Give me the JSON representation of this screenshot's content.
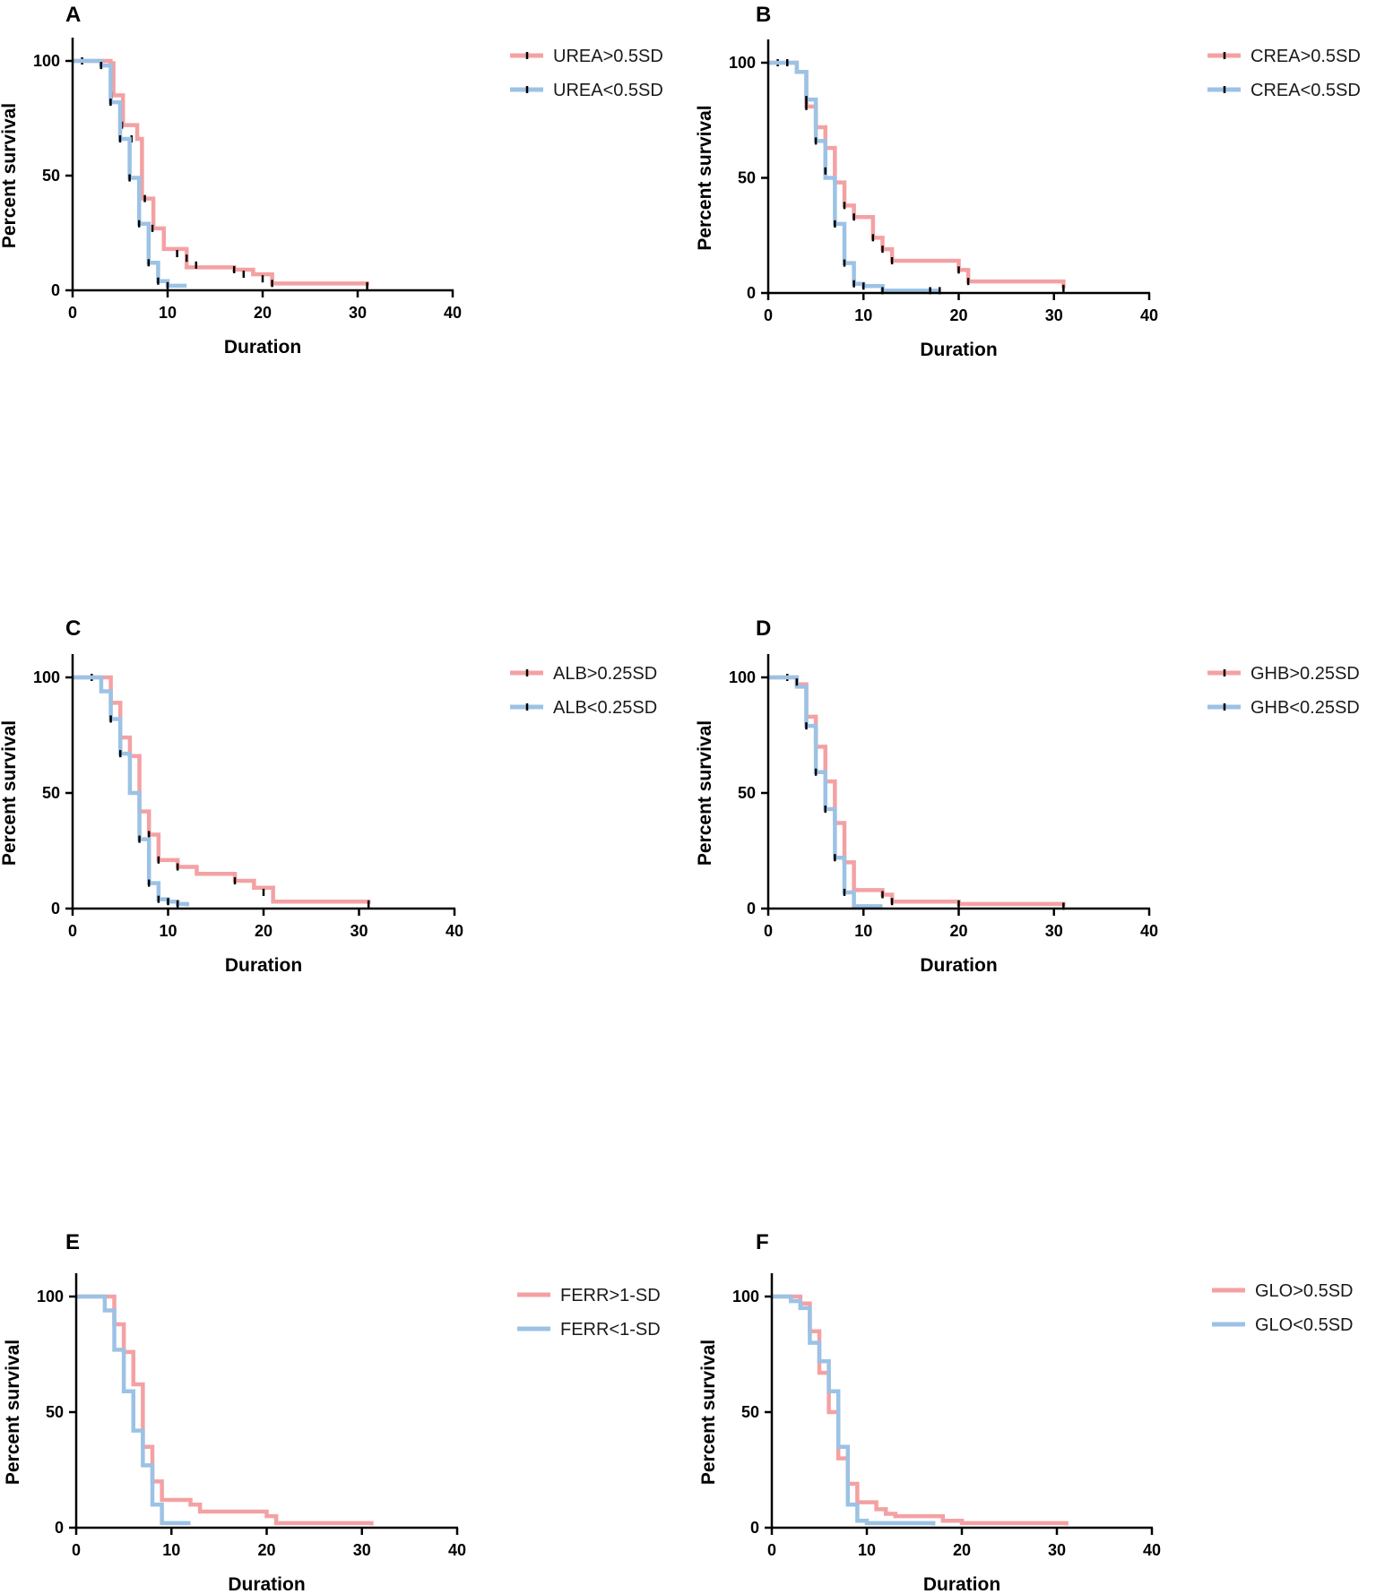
{
  "colors": {
    "high": "#f4a1a3",
    "low": "#9cc2e5",
    "censor": "#000000"
  },
  "chart_data": [
    {
      "type": "line",
      "panel": "A",
      "xlabel": "Duration",
      "ylabel": "Percent survival",
      "xlim": [
        0,
        40
      ],
      "ylim": [
        0,
        100
      ],
      "xticks": [
        0,
        10,
        20,
        30,
        40
      ],
      "yticks": [
        0,
        50,
        100
      ],
      "series": [
        {
          "name": "UREA>0.5SD",
          "color": "#f4a1a3",
          "steps": [
            [
              0,
              100
            ],
            [
              4,
              99
            ],
            [
              4.3,
              85
            ],
            [
              5.3,
              72
            ],
            [
              6.8,
              66
            ],
            [
              7.3,
              40
            ],
            [
              8.5,
              27
            ],
            [
              9.6,
              18
            ],
            [
              12,
              10
            ],
            [
              17,
              9
            ],
            [
              19,
              7
            ],
            [
              21,
              3
            ],
            [
              31,
              2
            ]
          ],
          "censor": [
            [
              1,
              100
            ],
            [
              4.1,
              85
            ],
            [
              5.2,
              72
            ],
            [
              6.2,
              66
            ],
            [
              7.6,
              40
            ],
            [
              8.4,
              27
            ],
            [
              11,
              16
            ],
            [
              12,
              14
            ],
            [
              13,
              11
            ],
            [
              17,
              9
            ],
            [
              18,
              7
            ],
            [
              20,
              5
            ],
            [
              21,
              3
            ],
            [
              31,
              2
            ]
          ]
        },
        {
          "name": "UREA<0.5SD",
          "color": "#9cc2e5",
          "steps": [
            [
              0,
              100
            ],
            [
              3,
              98
            ],
            [
              4,
              82
            ],
            [
              5,
              66
            ],
            [
              6,
              49
            ],
            [
              7,
              29
            ],
            [
              8,
              12
            ],
            [
              9,
              4
            ],
            [
              10,
              2
            ],
            [
              12,
              2
            ]
          ],
          "censor": [
            [
              3,
              98
            ],
            [
              4,
              82
            ],
            [
              5,
              66
            ],
            [
              6,
              49
            ],
            [
              7,
              29
            ],
            [
              8,
              12
            ],
            [
              9,
              4
            ],
            [
              10,
              2
            ]
          ]
        }
      ]
    },
    {
      "type": "line",
      "panel": "B",
      "xlabel": "Duration",
      "ylabel": "Percent survival",
      "xlim": [
        0,
        40
      ],
      "ylim": [
        0,
        100
      ],
      "xticks": [
        0,
        10,
        20,
        30,
        40
      ],
      "yticks": [
        0,
        50,
        100
      ],
      "series": [
        {
          "name": "CREA>0.5SD",
          "color": "#f4a1a3",
          "steps": [
            [
              0,
              100
            ],
            [
              3,
              96
            ],
            [
              4,
              81
            ],
            [
              5,
              72
            ],
            [
              6,
              63
            ],
            [
              7,
              48
            ],
            [
              8,
              38
            ],
            [
              9,
              33
            ],
            [
              11,
              24
            ],
            [
              12,
              19
            ],
            [
              13,
              14
            ],
            [
              20,
              10
            ],
            [
              21,
              5
            ],
            [
              31,
              2
            ]
          ],
          "censor": [
            [
              1,
              100
            ],
            [
              4,
              81
            ],
            [
              6,
              63
            ],
            [
              7,
              48
            ],
            [
              8,
              38
            ],
            [
              9,
              33
            ],
            [
              11,
              24
            ],
            [
              12,
              19
            ],
            [
              13,
              14
            ],
            [
              20,
              10
            ],
            [
              21,
              5
            ],
            [
              31,
              2
            ]
          ]
        },
        {
          "name": "CREA<0.5SD",
          "color": "#9cc2e5",
          "steps": [
            [
              0,
              100
            ],
            [
              3,
              96
            ],
            [
              4,
              84
            ],
            [
              5,
              66
            ],
            [
              6,
              50
            ],
            [
              7,
              30
            ],
            [
              8,
              13
            ],
            [
              9,
              4
            ],
            [
              10,
              3
            ],
            [
              12,
              1
            ],
            [
              18,
              1
            ]
          ],
          "censor": [
            [
              2,
              100
            ],
            [
              4,
              84
            ],
            [
              5,
              66
            ],
            [
              6,
              53
            ],
            [
              7,
              30
            ],
            [
              8,
              13
            ],
            [
              9,
              4
            ],
            [
              10,
              3
            ],
            [
              12,
              1
            ],
            [
              17,
              1
            ],
            [
              18,
              1
            ]
          ]
        }
      ]
    },
    {
      "type": "line",
      "panel": "C",
      "xlabel": "Duration",
      "ylabel": "Percent survival",
      "xlim": [
        0,
        40
      ],
      "ylim": [
        0,
        100
      ],
      "xticks": [
        0,
        10,
        20,
        30,
        40
      ],
      "yticks": [
        0,
        50,
        100
      ],
      "series": [
        {
          "name": "ALB>0.25SD",
          "color": "#f4a1a3",
          "steps": [
            [
              0,
              100
            ],
            [
              4,
              89
            ],
            [
              5,
              74
            ],
            [
              6,
              66
            ],
            [
              7,
              42
            ],
            [
              8,
              32
            ],
            [
              9,
              21
            ],
            [
              11,
              18
            ],
            [
              13,
              15
            ],
            [
              17,
              12
            ],
            [
              19,
              9
            ],
            [
              21,
              3
            ],
            [
              31,
              2
            ]
          ],
          "censor": [
            [
              2,
              100
            ],
            [
              5,
              74
            ],
            [
              6,
              66
            ],
            [
              7,
              42
            ],
            [
              8,
              32
            ],
            [
              9,
              21
            ],
            [
              11,
              18
            ],
            [
              17,
              12
            ],
            [
              20,
              7
            ],
            [
              31,
              2
            ]
          ]
        },
        {
          "name": "ALB<0.25SD",
          "color": "#9cc2e5",
          "steps": [
            [
              0,
              100
            ],
            [
              3,
              94
            ],
            [
              4,
              82
            ],
            [
              5,
              67
            ],
            [
              6,
              50
            ],
            [
              7,
              30
            ],
            [
              8,
              11
            ],
            [
              9,
              4
            ],
            [
              10,
              3
            ],
            [
              11,
              2
            ],
            [
              12,
              1
            ]
          ],
          "censor": [
            [
              4,
              82
            ],
            [
              5,
              67
            ],
            [
              7,
              30
            ],
            [
              8,
              11
            ],
            [
              9,
              4
            ],
            [
              10,
              3
            ],
            [
              11,
              2
            ]
          ]
        }
      ]
    },
    {
      "type": "line",
      "panel": "D",
      "xlabel": "Duration",
      "ylabel": "Percent survival",
      "xlim": [
        0,
        40
      ],
      "ylim": [
        0,
        100
      ],
      "xticks": [
        0,
        10,
        20,
        30,
        40
      ],
      "yticks": [
        0,
        50,
        100
      ],
      "series": [
        {
          "name": "GHB>0.25SD",
          "color": "#f4a1a3",
          "steps": [
            [
              0,
              100
            ],
            [
              3,
              97
            ],
            [
              4,
              83
            ],
            [
              5,
              70
            ],
            [
              6,
              55
            ],
            [
              7,
              37
            ],
            [
              8,
              20
            ],
            [
              9,
              8
            ],
            [
              12,
              6
            ],
            [
              13,
              3
            ],
            [
              20,
              2
            ],
            [
              31,
              1
            ]
          ],
          "censor": [
            [
              2,
              100
            ],
            [
              4,
              83
            ],
            [
              5,
              70
            ],
            [
              6,
              55
            ],
            [
              7,
              37
            ],
            [
              8,
              20
            ],
            [
              12,
              6
            ],
            [
              13,
              3
            ],
            [
              20,
              2
            ],
            [
              31,
              1
            ]
          ]
        },
        {
          "name": "GHB<0.25SD",
          "color": "#9cc2e5",
          "steps": [
            [
              0,
              100
            ],
            [
              3,
              96
            ],
            [
              4,
              79
            ],
            [
              5,
              59
            ],
            [
              6,
              43
            ],
            [
              7,
              22
            ],
            [
              8,
              7
            ],
            [
              9,
              1
            ],
            [
              12,
              1
            ]
          ],
          "censor": [
            [
              3,
              98
            ],
            [
              4,
              79
            ],
            [
              5,
              59
            ],
            [
              6,
              43
            ],
            [
              7,
              22
            ],
            [
              8,
              7
            ]
          ]
        }
      ]
    },
    {
      "type": "line",
      "panel": "E",
      "xlabel": "Duration",
      "ylabel": "Percent survival",
      "xlim": [
        0,
        40
      ],
      "ylim": [
        0,
        100
      ],
      "xticks": [
        0,
        10,
        20,
        30,
        40
      ],
      "yticks": [
        0,
        50,
        100
      ],
      "series": [
        {
          "name": "FERR>1-SD",
          "color": "#f4a1a3",
          "steps": [
            [
              0,
              100
            ],
            [
              4,
              88
            ],
            [
              5,
              76
            ],
            [
              6,
              62
            ],
            [
              7,
              35
            ],
            [
              8,
              20
            ],
            [
              9,
              12
            ],
            [
              12,
              10
            ],
            [
              13,
              7
            ],
            [
              20,
              5
            ],
            [
              21,
              2
            ],
            [
              31,
              1
            ]
          ],
          "censor": []
        },
        {
          "name": "FERR<1-SD",
          "color": "#9cc2e5",
          "steps": [
            [
              0,
              100
            ],
            [
              3,
              94
            ],
            [
              4,
              77
            ],
            [
              5,
              59
            ],
            [
              6,
              42
            ],
            [
              7,
              27
            ],
            [
              8,
              10
            ],
            [
              9,
              2
            ],
            [
              12,
              2
            ]
          ],
          "censor": []
        }
      ]
    },
    {
      "type": "line",
      "panel": "F",
      "xlabel": "Duration",
      "ylabel": "Percent survival",
      "xlim": [
        0,
        40
      ],
      "ylim": [
        0,
        100
      ],
      "xticks": [
        0,
        10,
        20,
        30,
        40
      ],
      "yticks": [
        0,
        50,
        100
      ],
      "series": [
        {
          "name": "GLO>0.5SD",
          "color": "#f4a1a3",
          "steps": [
            [
              0,
              100
            ],
            [
              3,
              97
            ],
            [
              4,
              85
            ],
            [
              5,
              67
            ],
            [
              6,
              50
            ],
            [
              7,
              30
            ],
            [
              8,
              19
            ],
            [
              9,
              11
            ],
            [
              11,
              8
            ],
            [
              12,
              6
            ],
            [
              13,
              5
            ],
            [
              18,
              3
            ],
            [
              20,
              2
            ],
            [
              31,
              1
            ]
          ],
          "censor": []
        },
        {
          "name": "GLO<0.5SD",
          "color": "#9cc2e5",
          "steps": [
            [
              0,
              100
            ],
            [
              2,
              98
            ],
            [
              3,
              95
            ],
            [
              4,
              80
            ],
            [
              5,
              72
            ],
            [
              6,
              59
            ],
            [
              7,
              35
            ],
            [
              8,
              10
            ],
            [
              9,
              3
            ],
            [
              10,
              2
            ],
            [
              17,
              1
            ]
          ],
          "censor": []
        }
      ]
    }
  ]
}
